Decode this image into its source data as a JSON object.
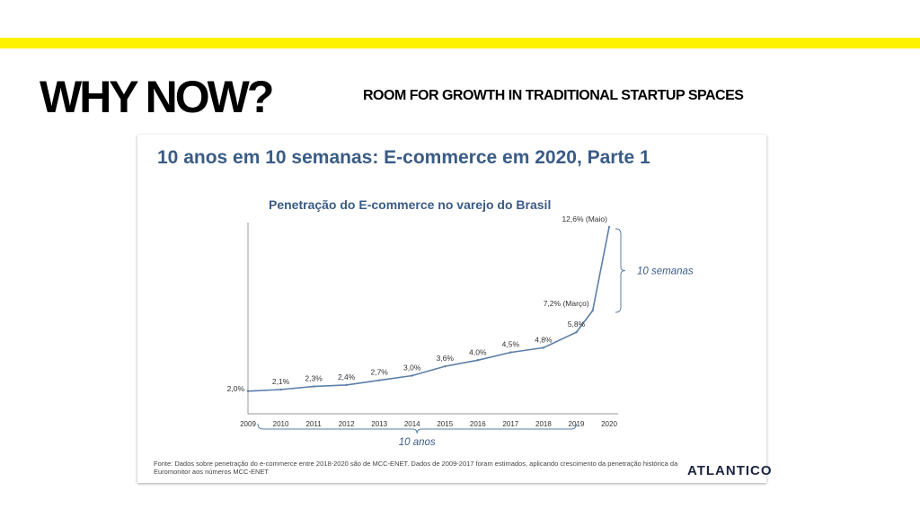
{
  "slide": {
    "headline": "WHY NOW?",
    "subheadline": "ROOM FOR GROWTH IN TRADITIONAL STARTUP SPACES",
    "band_color": "#fff200"
  },
  "card": {
    "title": "10 anos em 10 semanas: E-commerce em 2020, Parte 1",
    "source_note": "Fonte: Dados sobre penetração do e-commerce entre 2018-2020 são de MCC-ENET. Dados de 2009-2017 foram estimados, aplicando crescimento da penetração histórica da Euromonitor aos números MCC-ENET",
    "logo": "ATLANTICO",
    "title_color": "#3a5c86",
    "line_color": "#5b7fa8"
  },
  "chart_data": {
    "type": "line",
    "title": "Penetração do E-commerce no varejo do Brasil",
    "x": [
      2009,
      2010,
      2011,
      2012,
      2013,
      2014,
      2015,
      2016,
      2017,
      2018,
      2019,
      2020
    ],
    "points": [
      {
        "x": 2009.0,
        "y": 2.0,
        "label": "2,0%"
      },
      {
        "x": 2010.0,
        "y": 2.1,
        "label": "2,1%"
      },
      {
        "x": 2011.0,
        "y": 2.3,
        "label": "2,3%"
      },
      {
        "x": 2012.0,
        "y": 2.4,
        "label": "2,4%"
      },
      {
        "x": 2013.0,
        "y": 2.7,
        "label": "2,7%"
      },
      {
        "x": 2014.0,
        "y": 3.0,
        "label": "3,0%"
      },
      {
        "x": 2015.0,
        "y": 3.6,
        "label": "3,6%"
      },
      {
        "x": 2016.0,
        "y": 4.0,
        "label": "4,0%"
      },
      {
        "x": 2017.0,
        "y": 4.5,
        "label": "4,5%"
      },
      {
        "x": 2018.0,
        "y": 4.8,
        "label": "4,8%"
      },
      {
        "x": 2019.0,
        "y": 5.8,
        "label": "5,8%"
      },
      {
        "x": 2019.5,
        "y": 7.2,
        "label": "7,2% (Março)"
      },
      {
        "x": 2020.0,
        "y": 12.6,
        "label": "12,6% (Maio)"
      }
    ],
    "ylim": [
      1.0,
      13.0
    ],
    "annotations": {
      "weeks_label": "10 semanas",
      "years_label": "10 anos"
    }
  }
}
